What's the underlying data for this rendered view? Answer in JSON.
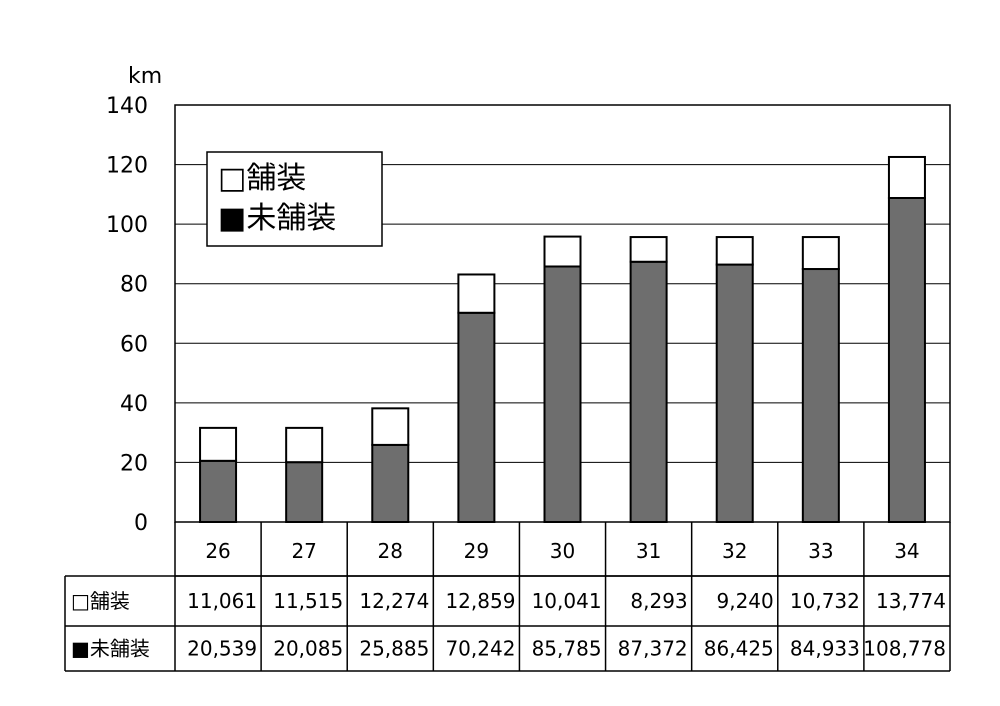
{
  "chart_data": {
    "type": "bar",
    "stacked": true,
    "unit_label": "km",
    "categories": [
      "26",
      "27",
      "28",
      "29",
      "30",
      "31",
      "32",
      "33",
      "34"
    ],
    "ylim": [
      0,
      140
    ],
    "yticks": [
      0,
      20,
      40,
      60,
      80,
      100,
      120,
      140
    ],
    "grid": true,
    "legend_position": "top-left",
    "series": [
      {
        "name": "未舗装",
        "color": "#6e6e6e",
        "values": [
          20.539,
          20.085,
          25.885,
          70.242,
          85.785,
          87.372,
          86.425,
          84.933,
          108.778
        ],
        "table_values": [
          "20,539",
          "20,085",
          "25,885",
          "70,242",
          "85,785",
          "87,372",
          "86,425",
          "84,933",
          "108,778"
        ]
      },
      {
        "name": "舗装",
        "color": "#ffffff",
        "values": [
          11.061,
          11.515,
          12.274,
          12.859,
          10.041,
          8.293,
          9.24,
          10.732,
          13.774
        ],
        "table_values": [
          "11,061",
          "11,515",
          "12,274",
          "12,859",
          "10,041",
          "8,293",
          "9,240",
          "10,732",
          "13,774"
        ]
      }
    ],
    "table_rows": [
      {
        "label": "□舗装",
        "series_index": 1
      },
      {
        "label": "■未舗装",
        "series_index": 0
      }
    ],
    "legend": [
      {
        "label": "□舗装",
        "series_index": 1
      },
      {
        "label": "■未舗装",
        "series_index": 0
      }
    ]
  }
}
